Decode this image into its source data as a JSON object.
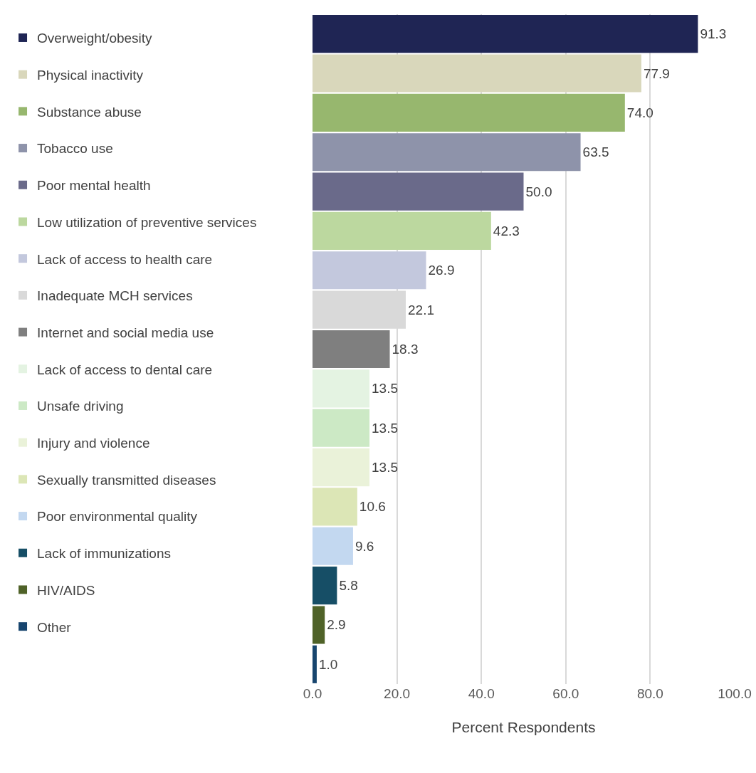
{
  "chart_data": {
    "type": "bar",
    "orientation": "horizontal",
    "xlabel": "Percent Respondents",
    "categories": [
      null,
      null,
      null,
      null,
      null,
      null,
      null,
      null,
      null,
      null,
      null,
      null,
      null,
      null,
      null,
      null,
      null
    ],
    "xlim": [
      0,
      100
    ],
    "xticks": [
      {
        "value": 0,
        "label": "0.0"
      },
      {
        "value": 20,
        "label": "20.0"
      },
      {
        "value": 40,
        "label": "40.0"
      },
      {
        "value": 60,
        "label": "60.0"
      },
      {
        "value": 80,
        "label": "80.0"
      },
      {
        "value": 100,
        "label": "100.0"
      }
    ],
    "grid": "x",
    "legend": "left",
    "series": [
      {
        "name": "Overweight/obesity",
        "color": "#1f2554",
        "values": [
          91.3,
          null,
          null,
          null,
          null,
          null,
          null,
          null,
          null,
          null,
          null,
          null,
          null,
          null,
          null,
          null,
          null
        ],
        "value_labels": [
          "91.3",
          null,
          null,
          null,
          null,
          null,
          null,
          null,
          null,
          null,
          null,
          null,
          null,
          null,
          null,
          null,
          null
        ]
      },
      {
        "name": "Physical inactivity",
        "color": "#d9d7bb",
        "values": [
          null,
          77.9,
          null,
          null,
          null,
          null,
          null,
          null,
          null,
          null,
          null,
          null,
          null,
          null,
          null,
          null,
          null
        ],
        "value_labels": [
          null,
          "77.9",
          null,
          null,
          null,
          null,
          null,
          null,
          null,
          null,
          null,
          null,
          null,
          null,
          null,
          null,
          null
        ]
      },
      {
        "name": "Substance abuse",
        "color": "#97b76e",
        "values": [
          null,
          null,
          74.0,
          null,
          null,
          null,
          null,
          null,
          null,
          null,
          null,
          null,
          null,
          null,
          null,
          null,
          null
        ],
        "value_labels": [
          null,
          null,
          "74.0",
          null,
          null,
          null,
          null,
          null,
          null,
          null,
          null,
          null,
          null,
          null,
          null,
          null,
          null
        ]
      },
      {
        "name": "Tobacco use",
        "color": "#8e93aa",
        "values": [
          null,
          null,
          null,
          63.5,
          null,
          null,
          null,
          null,
          null,
          null,
          null,
          null,
          null,
          null,
          null,
          null,
          null
        ],
        "value_labels": [
          null,
          null,
          null,
          "63.5",
          null,
          null,
          null,
          null,
          null,
          null,
          null,
          null,
          null,
          null,
          null,
          null,
          null
        ]
      },
      {
        "name": "Poor mental health",
        "color": "#6a6a8a",
        "values": [
          null,
          null,
          null,
          null,
          50.0,
          null,
          null,
          null,
          null,
          null,
          null,
          null,
          null,
          null,
          null,
          null,
          null
        ],
        "value_labels": [
          null,
          null,
          null,
          null,
          "50.0",
          null,
          null,
          null,
          null,
          null,
          null,
          null,
          null,
          null,
          null,
          null,
          null
        ]
      },
      {
        "name": "Low utilization of preventive services",
        "color": "#bcd89f",
        "values": [
          null,
          null,
          null,
          null,
          null,
          42.3,
          null,
          null,
          null,
          null,
          null,
          null,
          null,
          null,
          null,
          null,
          null
        ],
        "value_labels": [
          null,
          null,
          null,
          null,
          null,
          "42.3",
          null,
          null,
          null,
          null,
          null,
          null,
          null,
          null,
          null,
          null,
          null
        ]
      },
      {
        "name": "Lack of access to health care",
        "color": "#c3c8dd",
        "values": [
          null,
          null,
          null,
          null,
          null,
          null,
          26.9,
          null,
          null,
          null,
          null,
          null,
          null,
          null,
          null,
          null,
          null
        ],
        "value_labels": [
          null,
          null,
          null,
          null,
          null,
          null,
          "26.9",
          null,
          null,
          null,
          null,
          null,
          null,
          null,
          null,
          null,
          null
        ]
      },
      {
        "name": "Inadequate MCH services",
        "color": "#d9d9d9",
        "values": [
          null,
          null,
          null,
          null,
          null,
          null,
          null,
          22.1,
          null,
          null,
          null,
          null,
          null,
          null,
          null,
          null,
          null
        ],
        "value_labels": [
          null,
          null,
          null,
          null,
          null,
          null,
          null,
          "22.1",
          null,
          null,
          null,
          null,
          null,
          null,
          null,
          null,
          null
        ]
      },
      {
        "name": "Internet and social media use",
        "color": "#7f7f7f",
        "values": [
          null,
          null,
          null,
          null,
          null,
          null,
          null,
          null,
          18.3,
          null,
          null,
          null,
          null,
          null,
          null,
          null,
          null
        ],
        "value_labels": [
          null,
          null,
          null,
          null,
          null,
          null,
          null,
          null,
          "18.3",
          null,
          null,
          null,
          null,
          null,
          null,
          null,
          null
        ]
      },
      {
        "name": "Lack of access to dental care",
        "color": "#e4f3e2",
        "values": [
          null,
          null,
          null,
          null,
          null,
          null,
          null,
          null,
          null,
          13.5,
          null,
          null,
          null,
          null,
          null,
          null,
          null
        ],
        "value_labels": [
          null,
          null,
          null,
          null,
          null,
          null,
          null,
          null,
          null,
          "13.5",
          null,
          null,
          null,
          null,
          null,
          null,
          null
        ]
      },
      {
        "name": "Unsafe driving",
        "color": "#cce9c5",
        "values": [
          null,
          null,
          null,
          null,
          null,
          null,
          null,
          null,
          null,
          null,
          13.5,
          null,
          null,
          null,
          null,
          null,
          null
        ],
        "value_labels": [
          null,
          null,
          null,
          null,
          null,
          null,
          null,
          null,
          null,
          null,
          "13.5",
          null,
          null,
          null,
          null,
          null,
          null
        ]
      },
      {
        "name": "Injury and violence",
        "color": "#eaf2d9",
        "values": [
          null,
          null,
          null,
          null,
          null,
          null,
          null,
          null,
          null,
          null,
          null,
          13.5,
          null,
          null,
          null,
          null,
          null
        ],
        "value_labels": [
          null,
          null,
          null,
          null,
          null,
          null,
          null,
          null,
          null,
          null,
          null,
          "13.5",
          null,
          null,
          null,
          null,
          null
        ]
      },
      {
        "name": "Sexually transmitted diseases",
        "color": "#dce6b6",
        "values": [
          null,
          null,
          null,
          null,
          null,
          null,
          null,
          null,
          null,
          null,
          null,
          null,
          10.6,
          null,
          null,
          null,
          null
        ],
        "value_labels": [
          null,
          null,
          null,
          null,
          null,
          null,
          null,
          null,
          null,
          null,
          null,
          null,
          "10.6",
          null,
          null,
          null,
          null
        ]
      },
      {
        "name": "Poor environmental quality",
        "color": "#c3d8f0",
        "values": [
          null,
          null,
          null,
          null,
          null,
          null,
          null,
          null,
          null,
          null,
          null,
          null,
          null,
          9.6,
          null,
          null,
          null
        ],
        "value_labels": [
          null,
          null,
          null,
          null,
          null,
          null,
          null,
          null,
          null,
          null,
          null,
          null,
          null,
          "9.6",
          null,
          null,
          null
        ]
      },
      {
        "name": "Lack of immunizations",
        "color": "#164e66",
        "values": [
          null,
          null,
          null,
          null,
          null,
          null,
          null,
          null,
          null,
          null,
          null,
          null,
          null,
          null,
          5.8,
          null,
          null
        ],
        "value_labels": [
          null,
          null,
          null,
          null,
          null,
          null,
          null,
          null,
          null,
          null,
          null,
          null,
          null,
          null,
          "5.8",
          null,
          null
        ]
      },
      {
        "name": "HIV/AIDS",
        "color": "#4f6228",
        "values": [
          null,
          null,
          null,
          null,
          null,
          null,
          null,
          null,
          null,
          null,
          null,
          null,
          null,
          null,
          null,
          2.9,
          null
        ],
        "value_labels": [
          null,
          null,
          null,
          null,
          null,
          null,
          null,
          null,
          null,
          null,
          null,
          null,
          null,
          null,
          null,
          "2.9",
          null
        ]
      },
      {
        "name": "Other",
        "color": "#17456e",
        "values": [
          null,
          null,
          null,
          null,
          null,
          null,
          null,
          null,
          null,
          null,
          null,
          null,
          null,
          null,
          null,
          null,
          1.0
        ],
        "value_labels": [
          null,
          null,
          null,
          null,
          null,
          null,
          null,
          null,
          null,
          null,
          null,
          null,
          null,
          null,
          null,
          null,
          "1.0"
        ]
      }
    ]
  }
}
